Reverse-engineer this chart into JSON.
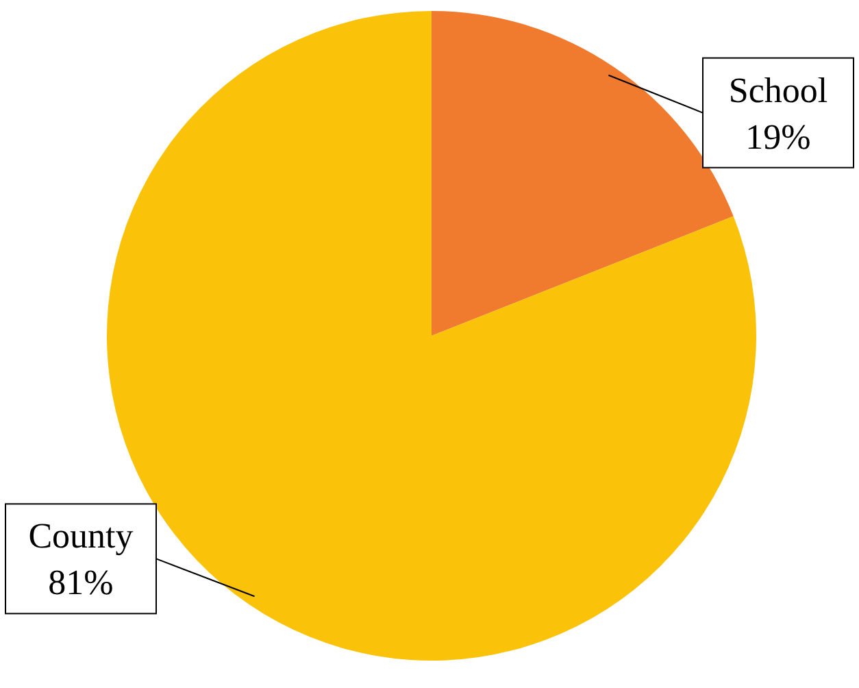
{
  "chart_data": {
    "type": "pie",
    "categories": [
      "School",
      "County"
    ],
    "values": [
      19,
      81
    ],
    "colors": [
      "#f07a2e",
      "#fbc20a"
    ],
    "value_labels": [
      "19%",
      "81%"
    ],
    "legend": false
  }
}
